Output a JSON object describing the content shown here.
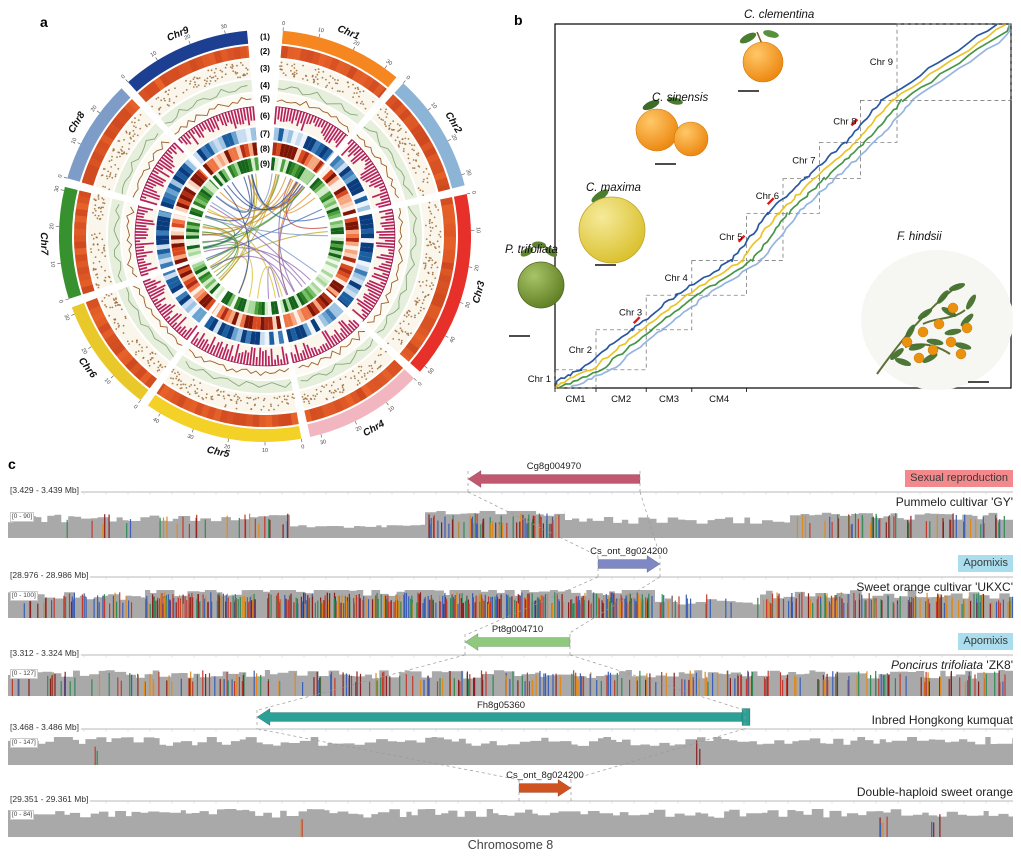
{
  "figure": {
    "panel_a": "a",
    "panel_b": "b",
    "panel_c": "c"
  },
  "chart_data": [
    {
      "id": "circos_genome_overview",
      "panel": "a",
      "type": "circos",
      "track_labels": [
        "(1)",
        "(2)",
        "(3)",
        "(4)",
        "(5)",
        "(6)",
        "(7)",
        "(8)",
        "(9)"
      ],
      "tick_interval_mb": 10,
      "chromosomes": [
        {
          "name": "Chr1",
          "length_mb": 34,
          "color": "#f6861f"
        },
        {
          "name": "Chr2",
          "length_mb": 33,
          "color": "#8cb4d6"
        },
        {
          "name": "Chr3",
          "length_mb": 52,
          "color": "#e8302a"
        },
        {
          "name": "Chr4",
          "length_mb": 33,
          "color": "#f2b6c0"
        },
        {
          "name": "Chr5",
          "length_mb": 44,
          "color": "#f4d127"
        },
        {
          "name": "Chr6",
          "length_mb": 32,
          "color": "#e9c929"
        },
        {
          "name": "Chr7",
          "length_mb": 31,
          "color": "#37912f"
        },
        {
          "name": "Chr8",
          "length_mb": 29,
          "color": "#7d9cc8"
        },
        {
          "name": "Chr9",
          "length_mb": 36,
          "color": "#1d3f92"
        }
      ],
      "ring_styles": {
        "density_base": "#e8622a",
        "density_dark": "#b93317",
        "scatter_dot": "#9a6b38",
        "line_band_fill": "#e6efdb",
        "line_band_stroke": "#8aa77e",
        "line2_stroke": "#96602c",
        "histogram": "#b7215e",
        "histogram_edge": "#8f1746",
        "heatmap_blue": [
          "#eef4fb",
          "#c9dcf0",
          "#9ec4e2",
          "#6aa3d0",
          "#3b7cb8",
          "#1b5fa0",
          "#0b3d7e"
        ],
        "heatmap_red": [
          "#fdeee6",
          "#fbd0b9",
          "#f7a77f",
          "#ef7545",
          "#d94a20",
          "#b22c12",
          "#7e1505"
        ],
        "heatmap_green": [
          "#f0f8ec",
          "#d3ecc8",
          "#a8d89a",
          "#78bf6a",
          "#4da23f",
          "#2c8022",
          "#14641b"
        ]
      },
      "chord_colors": [
        "#d8891e",
        "#2f5fae",
        "#c23b2e",
        "#8a5fae",
        "#d4b91f",
        "#b5a21c",
        "#3e8f3e",
        "#6f8fc0",
        "#1c3f8f"
      ]
    },
    {
      "id": "synteny_dotplot",
      "panel": "b",
      "type": "scatter",
      "x_axis_labels": [
        "CM1",
        "CM2",
        "CM3",
        "CM4"
      ],
      "diagonal_labels": [
        "Chr 1",
        "Chr 2",
        "Chr 3",
        "Chr 4",
        "Chr 5",
        "Chr 6",
        "Chr 7",
        "Chr 8",
        "Chr 9"
      ],
      "series_colors": [
        "#1d4e9e",
        "#e9c11c",
        "#3d8f3d",
        "#8fb0dd"
      ],
      "highlight_color": "#e01818",
      "species_labels": [
        "C. clementina",
        "C. sinensis",
        "C. maxima",
        "P. trifoliata",
        "F. hindsii"
      ]
    },
    {
      "id": "genome_browser_chr8",
      "panel": "c",
      "type": "genome-tracks",
      "chromosome_caption": "Chromosome 8",
      "tracks": [
        {
          "region": "[3.429 - 3.439 Mb]",
          "coverage_range": "[0 - 90]",
          "gene": "Cg8g004970",
          "gene_color": "#c2586f",
          "arrow_direction": "left",
          "sample": "Pummelo cultivar 'GY'",
          "badge": "Sexual reproduction",
          "badge_color": "#f2898c"
        },
        {
          "region": "[28.976 - 28.986 Mb]",
          "coverage_range": "[0 - 100]",
          "gene": "Cs_ont_8g024200",
          "gene_color": "#7d88c4",
          "arrow_direction": "right",
          "sample": "Sweet orange cultivar 'UKXC'",
          "badge": "Apomixis",
          "badge_color": "#aadded"
        },
        {
          "region": "[3.312 - 3.324 Mb]",
          "coverage_range": "[0 - 127]",
          "gene": "Pt8g004710",
          "gene_color": "#8fc97e",
          "arrow_direction": "left",
          "sample": "Poncirus trifoliata 'ZK8'",
          "sample_italic": "Poncirus trifoliata",
          "sample_rest": " 'ZK8'",
          "badge": "Apomixis",
          "badge_color": "#aadded"
        },
        {
          "region": "[3.468 - 3.486 Mb]",
          "coverage_range": "[0 - 147]",
          "gene": "Fh8g05360",
          "gene_color": "#2aa096",
          "arrow_direction": "left",
          "sample": "Inbred Hongkong kumquat",
          "badge": null,
          "badge_color": null
        },
        {
          "region": "[29.351 - 29.361 Mb]",
          "coverage_range": "[0 - 84]",
          "gene": "Cs_ont_8g024200",
          "gene_color": "#d0521f",
          "arrow_direction": "right",
          "sample": "Double-haploid sweet orange",
          "badge": null,
          "badge_color": null
        }
      ]
    }
  ]
}
